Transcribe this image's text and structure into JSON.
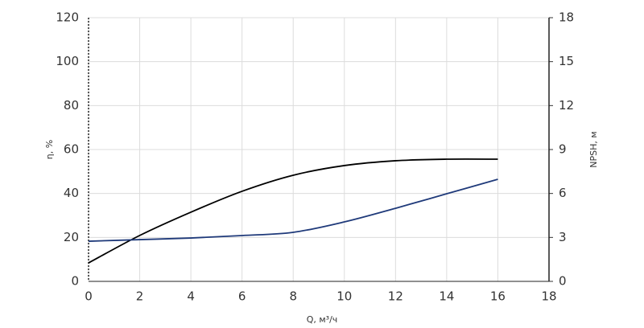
{
  "chart_data": {
    "type": "line",
    "x_label": "Q, м³/ч",
    "y_label": "η, %",
    "y2_label": "NPSH, м",
    "x": [
      0,
      2,
      4,
      6,
      8,
      10,
      12,
      14,
      16
    ],
    "xlim": [
      0,
      18
    ],
    "xticks": [
      0,
      2,
      4,
      6,
      8,
      10,
      12,
      14,
      16,
      18
    ],
    "ylim": [
      0,
      120
    ],
    "yticks": [
      0,
      20,
      40,
      60,
      80,
      100,
      120
    ],
    "y2lim": [
      0,
      18
    ],
    "y2ticks": [
      0,
      3,
      6,
      9,
      12,
      15,
      18
    ],
    "grid": true,
    "series": [
      {
        "color": "#000000",
        "values": [
          8.4,
          20.9,
          31.5,
          41,
          48.3,
          52.7,
          54.9,
          55.6,
          55.6
        ]
      },
      {
        "color": "#1f3a7a",
        "axis": "y2",
        "values": [
          2.74,
          2.85,
          2.96,
          3.13,
          3.35,
          4.06,
          4.99,
          5.98,
          6.97
        ]
      }
    ]
  }
}
